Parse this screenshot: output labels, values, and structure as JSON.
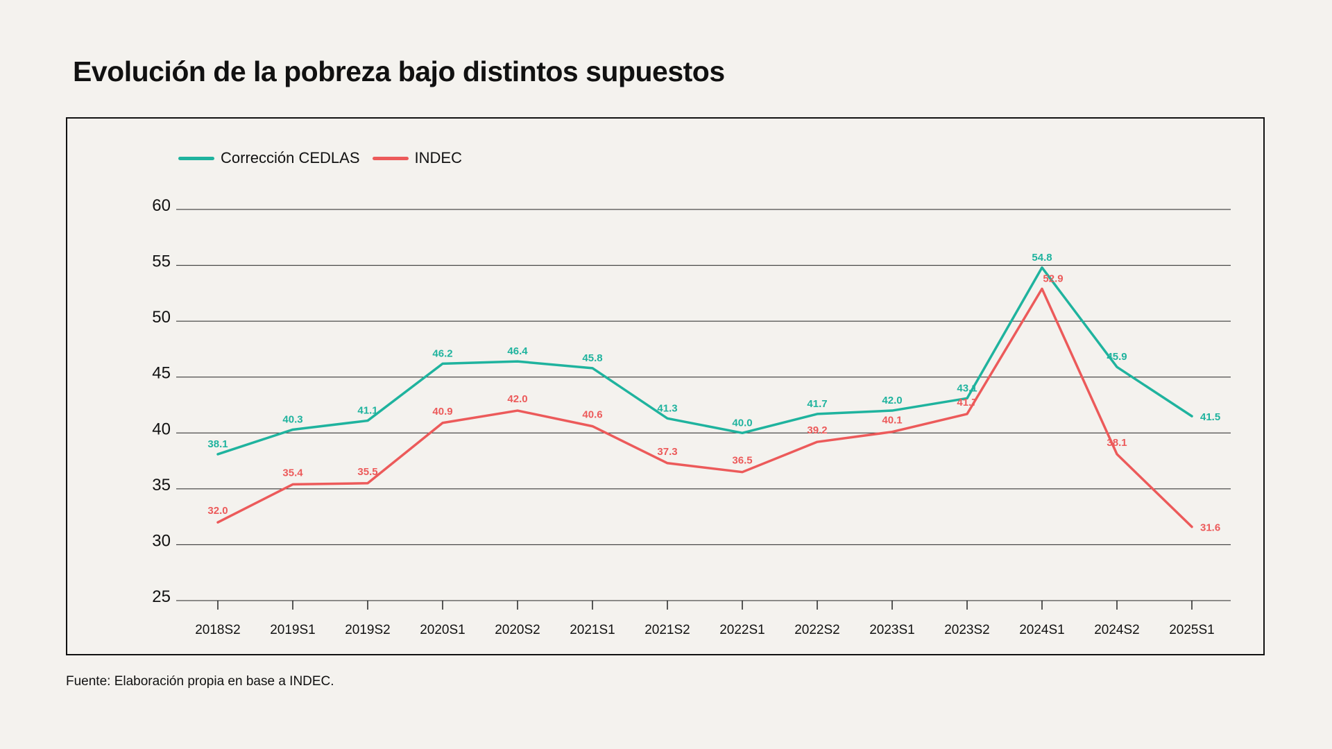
{
  "title": "Evolución de la pobreza bajo distintos supuestos",
  "source": "Fuente: Elaboración propia en base a INDEC.",
  "colors": {
    "background": "#f4f2ee",
    "cedlas": "#1fb39e",
    "indec": "#ec5a5a",
    "grid": "#222222",
    "text": "#111111"
  },
  "chart_data": {
    "type": "line",
    "title": "Evolución de la pobreza bajo distintos supuestos",
    "xlabel": "",
    "ylabel": "",
    "categories": [
      "2018S2",
      "2019S1",
      "2019S2",
      "2020S1",
      "2020S2",
      "2021S1",
      "2021S2",
      "2022S1",
      "2022S2",
      "2023S1",
      "2023S2",
      "2024S1",
      "2024S2",
      "2025S1"
    ],
    "ylim": [
      25,
      60
    ],
    "yticks": [
      60,
      55,
      50,
      45,
      40,
      35,
      30,
      25
    ],
    "grid": true,
    "legend_position": "top-left",
    "series": [
      {
        "name": "Corrección CEDLAS",
        "color": "#1fb39e",
        "values": [
          38.1,
          40.3,
          41.1,
          46.2,
          46.4,
          45.8,
          41.3,
          40.0,
          41.7,
          42.0,
          43.1,
          54.8,
          45.9,
          41.5
        ],
        "labels": [
          "38.1",
          "40.3",
          "41.1",
          "46.2",
          "46.4",
          "45.8",
          "41.3",
          "40.0",
          "41.7",
          "42.0",
          "43.1",
          "54.8",
          "45.9",
          "41.5"
        ]
      },
      {
        "name": "INDEC",
        "color": "#ec5a5a",
        "values": [
          32.0,
          35.4,
          35.5,
          40.9,
          42.0,
          40.6,
          37.3,
          36.5,
          39.2,
          40.1,
          41.7,
          52.9,
          38.1,
          31.6
        ],
        "labels": [
          "32.0",
          "35.4",
          "35.5",
          "40.9",
          "42.0",
          "40.6",
          "37.3",
          "36.5",
          "39.2",
          "40.1",
          "41.7",
          "52.9",
          "38.1",
          "31.6"
        ]
      }
    ]
  }
}
